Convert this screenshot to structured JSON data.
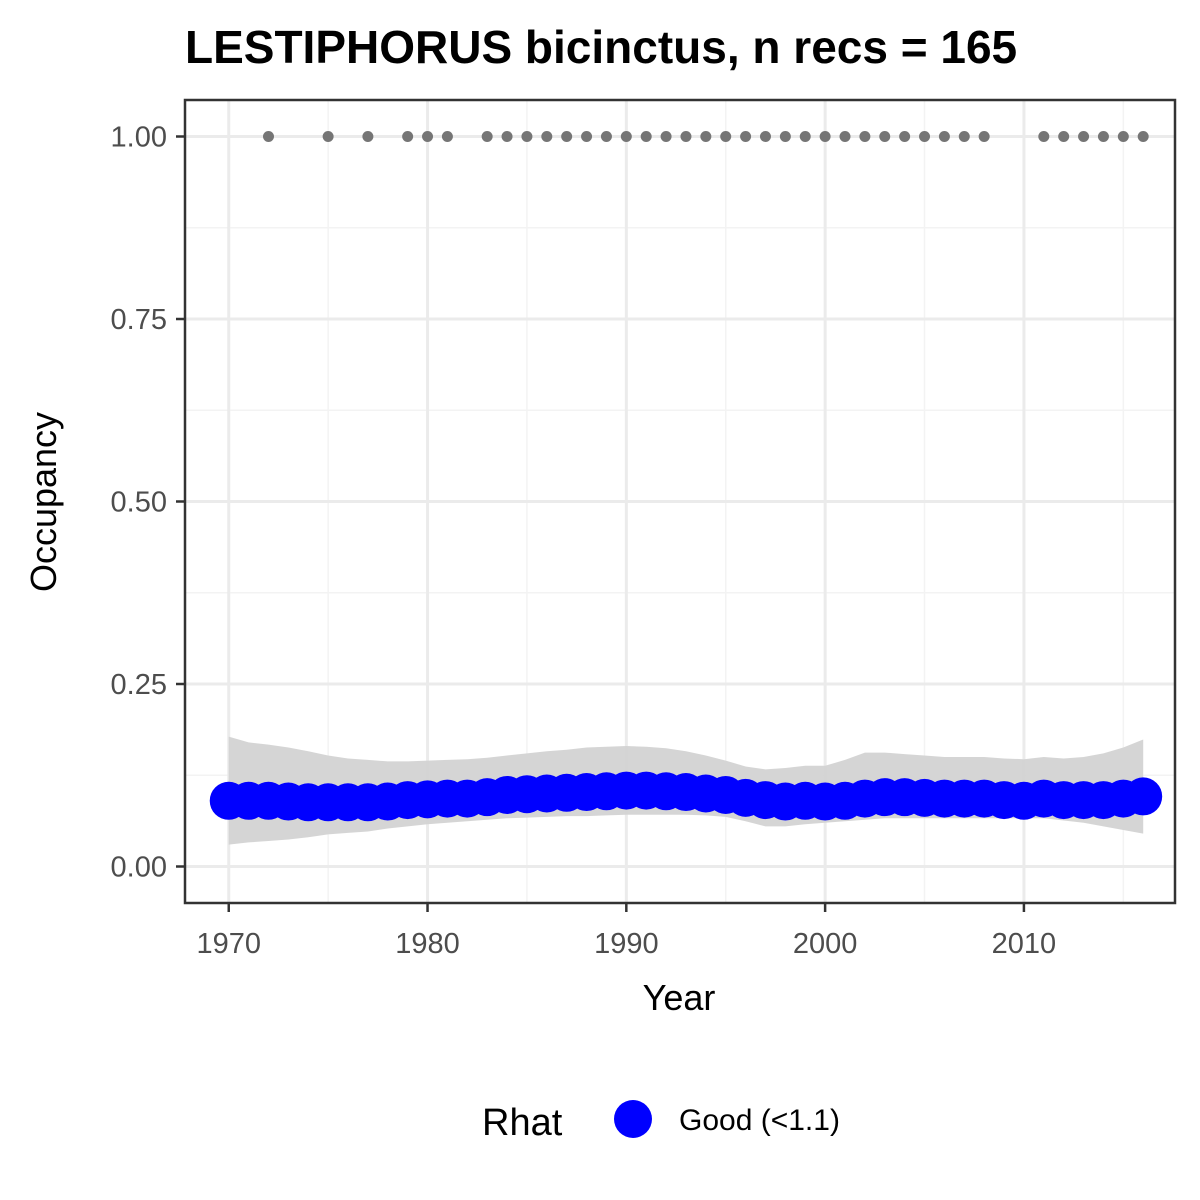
{
  "chart_data": {
    "type": "line",
    "title": "LESTIPHORUS bicinctus, n recs = 165",
    "xlabel": "Year",
    "ylabel": "Occupancy",
    "xlim": [
      1967.8,
      2017.6
    ],
    "ylim": [
      -0.05,
      1.05
    ],
    "x_ticks": [
      1970,
      1980,
      1990,
      2000,
      2010
    ],
    "y_ticks": [
      0.0,
      0.25,
      0.5,
      0.75,
      1.0
    ],
    "x_tick_labels": [
      "1970",
      "1980",
      "1990",
      "2000",
      "2010"
    ],
    "y_tick_labels": [
      "0.00",
      "0.25",
      "0.50",
      "0.75",
      "1.00"
    ],
    "grid": true,
    "legend_position": "bottom",
    "series": [
      {
        "type": "points",
        "years": [
          1970,
          1971,
          1972,
          1973,
          1974,
          1975,
          1976,
          1977,
          1978,
          1979,
          1980,
          1981,
          1982,
          1983,
          1984,
          1985,
          1986,
          1987,
          1988,
          1989,
          1990,
          1991,
          1992,
          1993,
          1994,
          1995,
          1996,
          1997,
          1998,
          1999,
          2000,
          2001,
          2002,
          2003,
          2004,
          2005,
          2006,
          2007,
          2008,
          2009,
          2010,
          2011,
          2012,
          2013,
          2014,
          2015,
          2016
        ],
        "values": [
          0.09,
          0.09,
          0.09,
          0.089,
          0.088,
          0.088,
          0.088,
          0.088,
          0.089,
          0.091,
          0.092,
          0.093,
          0.093,
          0.095,
          0.098,
          0.099,
          0.1,
          0.101,
          0.102,
          0.103,
          0.104,
          0.104,
          0.103,
          0.102,
          0.1,
          0.098,
          0.094,
          0.091,
          0.089,
          0.09,
          0.089,
          0.09,
          0.093,
          0.095,
          0.095,
          0.094,
          0.093,
          0.093,
          0.093,
          0.091,
          0.09,
          0.093,
          0.091,
          0.091,
          0.091,
          0.093,
          0.096
        ],
        "lower": [
          0.03,
          0.033,
          0.035,
          0.037,
          0.04,
          0.044,
          0.046,
          0.048,
          0.052,
          0.055,
          0.058,
          0.06,
          0.062,
          0.064,
          0.066,
          0.067,
          0.068,
          0.069,
          0.069,
          0.07,
          0.071,
          0.071,
          0.071,
          0.071,
          0.07,
          0.068,
          0.062,
          0.055,
          0.055,
          0.058,
          0.06,
          0.062,
          0.064,
          0.066,
          0.066,
          0.066,
          0.066,
          0.066,
          0.066,
          0.066,
          0.066,
          0.066,
          0.063,
          0.06,
          0.055,
          0.05,
          0.045
        ],
        "upper": [
          0.178,
          0.17,
          0.167,
          0.163,
          0.158,
          0.152,
          0.148,
          0.146,
          0.144,
          0.144,
          0.145,
          0.146,
          0.147,
          0.149,
          0.152,
          0.155,
          0.158,
          0.16,
          0.163,
          0.164,
          0.165,
          0.164,
          0.162,
          0.158,
          0.152,
          0.145,
          0.137,
          0.133,
          0.135,
          0.138,
          0.138,
          0.146,
          0.156,
          0.156,
          0.154,
          0.152,
          0.15,
          0.15,
          0.15,
          0.148,
          0.147,
          0.15,
          0.148,
          0.15,
          0.155,
          0.163,
          0.174
        ]
      },
      {
        "type": "records",
        "years": [
          1972,
          1975,
          1977,
          1979,
          1980,
          1981,
          1983,
          1984,
          1985,
          1986,
          1987,
          1988,
          1989,
          1990,
          1991,
          1992,
          1993,
          1994,
          1995,
          1996,
          1997,
          1998,
          1999,
          2000,
          2001,
          2002,
          2003,
          2004,
          2005,
          2006,
          2007,
          2008,
          2011,
          2012,
          2013,
          2014,
          2015,
          2016
        ],
        "values": [
          1,
          1,
          1,
          1,
          1,
          1,
          1,
          1,
          1,
          1,
          1,
          1,
          1,
          1,
          1,
          1,
          1,
          1,
          1,
          1,
          1,
          1,
          1,
          1,
          1,
          1,
          1,
          1,
          1,
          1,
          1,
          1,
          1,
          1,
          1,
          1,
          1,
          1
        ]
      }
    ],
    "legend": {
      "title": "Rhat",
      "entries": [
        {
          "label": "Good (<1.1)",
          "color": "#0000ff"
        }
      ]
    },
    "colors": {
      "points": "#0000ff",
      "ribbon": "#d3d3d3",
      "records": "#757575",
      "grid_major": "#ebebeb",
      "grid_minor": "#f3f3f3",
      "panel_border": "#333333"
    }
  }
}
